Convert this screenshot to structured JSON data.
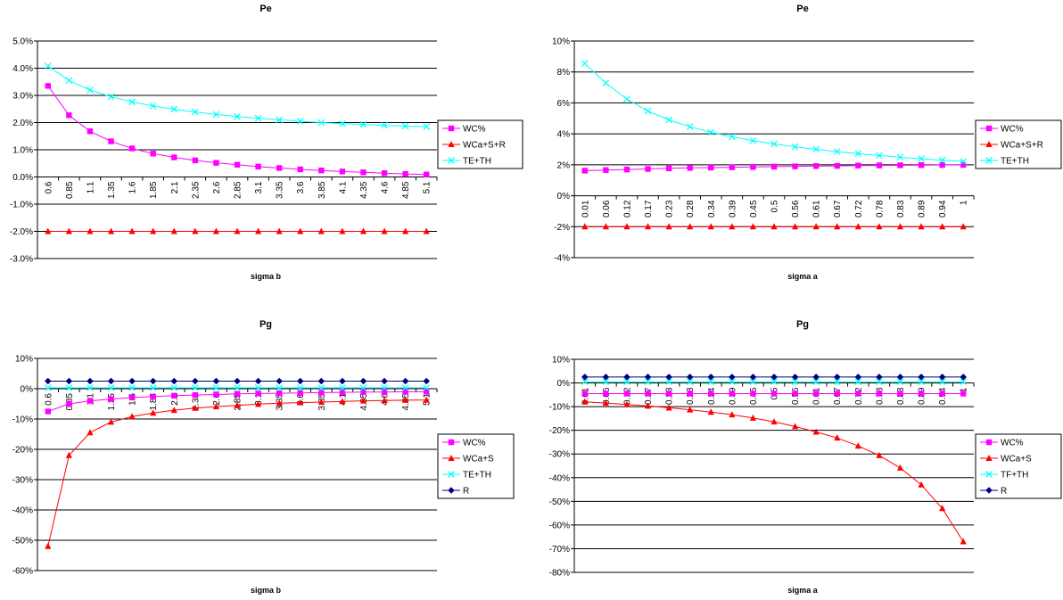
{
  "chart_data": [
    {
      "type": "line",
      "title": "Pe",
      "xlabel": "sigma b",
      "ylabel": "",
      "ylim": [
        -0.03,
        0.05
      ],
      "yticks": [
        "5.0%",
        "4.0%",
        "3.0%",
        "2.0%",
        "1.0%",
        "0.0%",
        "-1.0%",
        "-2.0%",
        "-3.0%"
      ],
      "categories": [
        "0.6",
        "0.85",
        "1.1",
        "1.35",
        "1.6",
        "1.85",
        "2.1",
        "2.35",
        "2.6",
        "2.85",
        "3.1",
        "3.35",
        "3.6",
        "3.85",
        "4.1",
        "4.35",
        "4.6",
        "4.85",
        "5.1"
      ],
      "legend_position": "right",
      "series": [
        {
          "name": "WC%",
          "color": "#ff00ff",
          "marker": "square",
          "values": [
            0.0335,
            0.0227,
            0.0168,
            0.0131,
            0.0105,
            0.0086,
            0.0072,
            0.0061,
            0.0052,
            0.0045,
            0.0038,
            0.0033,
            0.0028,
            0.0024,
            0.002,
            0.0017,
            0.0014,
            0.0011,
            0.0009
          ]
        },
        {
          "name": "WCa+S+R",
          "color": "#ff0000",
          "marker": "triangle",
          "values": [
            -0.02,
            -0.02,
            -0.02,
            -0.02,
            -0.02,
            -0.02,
            -0.02,
            -0.02,
            -0.02,
            -0.02,
            -0.02,
            -0.02,
            -0.02,
            -0.02,
            -0.02,
            -0.02,
            -0.02,
            -0.02,
            -0.02
          ]
        },
        {
          "name": "TE+TH",
          "color": "#00ffff",
          "marker": "x",
          "values": [
            0.0408,
            0.0355,
            0.032,
            0.0295,
            0.0276,
            0.0261,
            0.0249,
            0.0239,
            0.023,
            0.0222,
            0.0216,
            0.021,
            0.0205,
            0.02,
            0.0196,
            0.0193,
            0.019,
            0.0187,
            0.0185
          ]
        }
      ]
    },
    {
      "type": "line",
      "title": "Pe",
      "xlabel": "sigma a",
      "ylabel": "",
      "ylim": [
        -0.04,
        0.1
      ],
      "yticks": [
        "10%",
        "8%",
        "6%",
        "4%",
        "2%",
        "0%",
        "-2%",
        "-4%"
      ],
      "categories": [
        "0.01",
        "0.06",
        "0.12",
        "0.17",
        "0.23",
        "0.28",
        "0.34",
        "0.39",
        "0.45",
        "0.5",
        "0.56",
        "0.61",
        "0.67",
        "0.72",
        "0.78",
        "0.83",
        "0.89",
        "0.94",
        "1"
      ],
      "legend_position": "right",
      "series": [
        {
          "name": "WC%",
          "color": "#ff00ff",
          "marker": "square",
          "values": [
            0.0162,
            0.0166,
            0.017,
            0.0173,
            0.0177,
            0.018,
            0.0182,
            0.0184,
            0.0186,
            0.0188,
            0.019,
            0.0192,
            0.0193,
            0.0195,
            0.0196,
            0.0197,
            0.0198,
            0.0199,
            0.02
          ]
        },
        {
          "name": "WCa+S+R",
          "color": "#ff0000",
          "marker": "triangle",
          "values": [
            -0.02,
            -0.02,
            -0.02,
            -0.02,
            -0.02,
            -0.02,
            -0.02,
            -0.02,
            -0.02,
            -0.02,
            -0.02,
            -0.02,
            -0.02,
            -0.02,
            -0.02,
            -0.02,
            -0.02,
            -0.02,
            -0.02
          ]
        },
        {
          "name": "TE+TH",
          "color": "#00ffff",
          "marker": "x",
          "values": [
            0.0855,
            0.0728,
            0.0625,
            0.0548,
            0.049,
            0.0446,
            0.041,
            0.0381,
            0.0356,
            0.0335,
            0.0316,
            0.03,
            0.0285,
            0.0272,
            0.026,
            0.0249,
            0.0239,
            0.023,
            0.0222
          ]
        }
      ]
    },
    {
      "type": "line",
      "title": "Pg",
      "xlabel": "sigma b",
      "ylabel": "",
      "ylim": [
        -0.6,
        0.1
      ],
      "yticks": [
        "10%",
        "0%",
        "-10%",
        "-20%",
        "-30%",
        "-40%",
        "-50%",
        "-60%"
      ],
      "categories": [
        "0.6",
        "0.85",
        "1.1",
        "1.35",
        "1.6",
        "1.85",
        "2.1",
        "2.35",
        "2.6",
        "2.85",
        "3.1",
        "3.35",
        "3.6",
        "3.85",
        "4.1",
        "4.35",
        "4.6",
        "4.85",
        "5.1"
      ],
      "legend_position": "right",
      "series": [
        {
          "name": "WC%",
          "color": "#ff00ff",
          "marker": "square",
          "values": [
            -0.075,
            -0.05,
            -0.04,
            -0.034,
            -0.029,
            -0.026,
            -0.023,
            -0.021,
            -0.019,
            -0.017,
            -0.016,
            -0.015,
            -0.014,
            -0.013,
            -0.012,
            -0.011,
            -0.011,
            -0.01,
            -0.01
          ]
        },
        {
          "name": "WCa+S",
          "color": "#ff0000",
          "marker": "triangle",
          "values": [
            -0.52,
            -0.22,
            -0.145,
            -0.11,
            -0.092,
            -0.08,
            -0.071,
            -0.064,
            -0.059,
            -0.055,
            -0.051,
            -0.048,
            -0.046,
            -0.044,
            -0.042,
            -0.04,
            -0.039,
            -0.038,
            -0.037
          ]
        },
        {
          "name": "TE+TH",
          "color": "#00ffff",
          "marker": "x",
          "values": [
            0.003,
            0.003,
            0.003,
            0.003,
            0.003,
            0.003,
            0.003,
            0.003,
            0.003,
            0.003,
            0.003,
            0.003,
            0.003,
            0.003,
            0.003,
            0.003,
            0.003,
            0.003,
            0.003
          ]
        },
        {
          "name": "R",
          "color": "#000080",
          "marker": "diamond",
          "values": [
            0.025,
            0.025,
            0.025,
            0.025,
            0.025,
            0.025,
            0.025,
            0.025,
            0.025,
            0.025,
            0.025,
            0.025,
            0.025,
            0.025,
            0.025,
            0.025,
            0.025,
            0.025,
            0.025
          ]
        }
      ]
    },
    {
      "type": "line",
      "title": "Pg",
      "xlabel": "sigma a",
      "ylabel": "",
      "ylim": [
        -0.8,
        0.1
      ],
      "yticks": [
        "10%",
        "0%",
        "-10%",
        "-20%",
        "-30%",
        "-40%",
        "-50%",
        "-60%",
        "-70%",
        "-80%"
      ],
      "categories": [
        "0.01",
        "0.06",
        "0.12",
        "0.17",
        "0.23",
        "0.28",
        "0.34",
        "0.39",
        "0.45",
        "0.5",
        "0.56",
        "0.61",
        "0.67",
        "0.72",
        "0.78",
        "0.83",
        "0.89",
        "0.94",
        "1"
      ],
      "legend_position": "right",
      "series": [
        {
          "name": "WC%",
          "color": "#ff00ff",
          "marker": "square",
          "values": [
            -0.045,
            -0.045,
            -0.045,
            -0.045,
            -0.045,
            -0.045,
            -0.045,
            -0.045,
            -0.045,
            -0.045,
            -0.045,
            -0.045,
            -0.045,
            -0.045,
            -0.045,
            -0.045,
            -0.045,
            -0.045,
            -0.045
          ]
        },
        {
          "name": "WCa+S",
          "color": "#ff0000",
          "marker": "triangle",
          "values": [
            -0.08,
            -0.085,
            -0.091,
            -0.097,
            -0.105,
            -0.113,
            -0.123,
            -0.134,
            -0.148,
            -0.164,
            -0.184,
            -0.207,
            -0.232,
            -0.266,
            -0.306,
            -0.359,
            -0.43,
            -0.53,
            -0.67
          ]
        },
        {
          "name": "TF+TH",
          "color": "#00ffff",
          "marker": "x",
          "values": [
            0.005,
            0.005,
            0.005,
            0.005,
            0.005,
            0.005,
            0.005,
            0.005,
            0.005,
            0.005,
            0.005,
            0.005,
            0.005,
            0.005,
            0.005,
            0.005,
            0.005,
            0.005,
            0.005
          ]
        },
        {
          "name": "R",
          "color": "#000080",
          "marker": "diamond",
          "values": [
            0.025,
            0.025,
            0.025,
            0.025,
            0.025,
            0.025,
            0.025,
            0.025,
            0.025,
            0.025,
            0.025,
            0.025,
            0.025,
            0.025,
            0.025,
            0.025,
            0.025,
            0.025,
            0.025
          ]
        }
      ]
    }
  ]
}
